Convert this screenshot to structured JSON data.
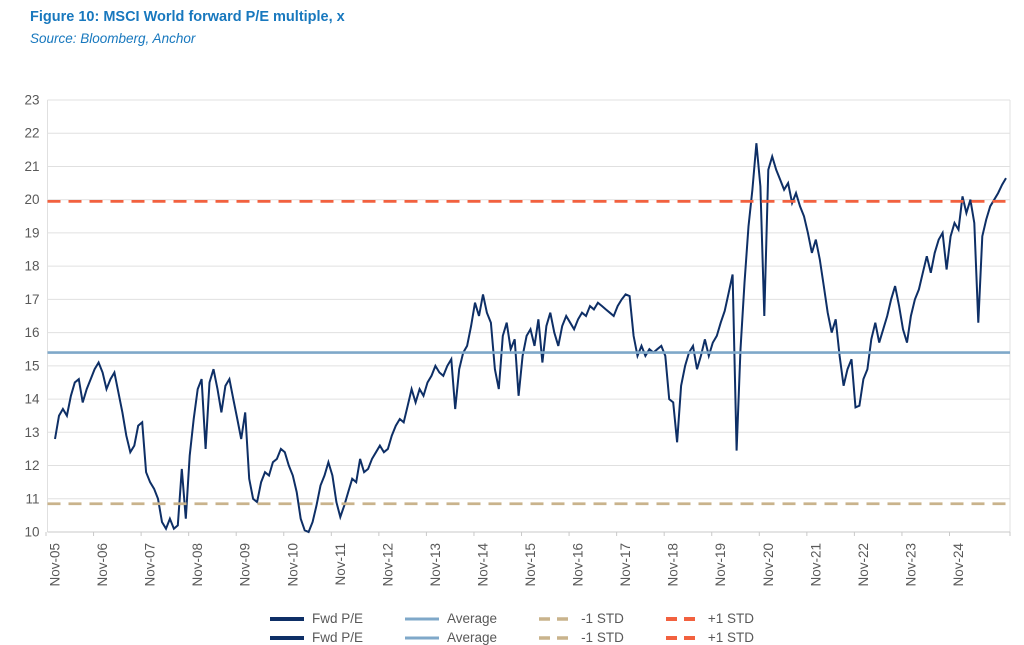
{
  "header": {
    "title": "Figure 10: MSCI World forward P/E multiple, x",
    "source": "Source: Bloomberg, Anchor"
  },
  "colors": {
    "title_blue": "#1878be",
    "fwd_pe_navy": "#0e2f66",
    "average_steel_blue": "#7fa8c9",
    "minus_1_std_tan": "#c9b38c",
    "plus_1_std_orange": "#f2613f",
    "gridline_gray": "#e0e0e0",
    "tick_text_gray": "#595959"
  },
  "chart_data": {
    "type": "line",
    "title": "MSCI World forward P/E multiple, x",
    "xlabel": "",
    "ylabel": "",
    "ylim": [
      10,
      23
    ],
    "yticks": [
      10,
      11,
      12,
      13,
      14,
      15,
      16,
      17,
      18,
      19,
      20,
      21,
      22,
      23
    ],
    "grid": "horizontal",
    "x_tick_labels": [
      "Nov-05",
      "Nov-06",
      "Nov-07",
      "Nov-08",
      "Nov-09",
      "Nov-10",
      "Nov-11",
      "Nov-12",
      "Nov-13",
      "Nov-14",
      "Nov-15",
      "Nov-16",
      "Nov-17",
      "Nov-18",
      "Nov-19",
      "Nov-20",
      "Nov-21",
      "Nov-22",
      "Nov-23",
      "Nov-24"
    ],
    "x_frequency": "monthly, starting Nov-2005",
    "legend": [
      "Fwd P/E",
      "Average",
      "-1 STD",
      "+1 STD"
    ],
    "legend_position": "bottom-center",
    "reference_lines": {
      "average": 15.4,
      "plus_1_std": 19.95,
      "minus_1_std": 10.85
    },
    "series": [
      {
        "name": "Fwd P/E",
        "style": "solid",
        "values": [
          12.8,
          13.5,
          13.7,
          13.5,
          14.1,
          14.5,
          14.6,
          13.9,
          14.3,
          14.6,
          14.9,
          15.1,
          14.8,
          14.3,
          14.6,
          14.8,
          14.2,
          13.6,
          12.9,
          12.4,
          12.6,
          13.2,
          13.3,
          11.8,
          11.5,
          11.3,
          11.0,
          10.3,
          10.1,
          10.4,
          10.1,
          10.2,
          11.9,
          10.4,
          12.3,
          13.4,
          14.3,
          14.6,
          12.5,
          14.5,
          14.9,
          14.3,
          13.6,
          14.4,
          14.6,
          14.0,
          13.4,
          12.8,
          13.6,
          11.6,
          11.0,
          10.9,
          11.5,
          11.8,
          11.7,
          12.1,
          12.2,
          12.5,
          12.4,
          12.0,
          11.7,
          11.2,
          10.4,
          10.05,
          10.0,
          10.3,
          10.8,
          11.4,
          11.7,
          12.1,
          11.7,
          10.9,
          10.45,
          10.8,
          11.2,
          11.6,
          11.5,
          12.2,
          11.8,
          11.9,
          12.2,
          12.4,
          12.6,
          12.4,
          12.5,
          12.9,
          13.2,
          13.4,
          13.3,
          13.8,
          14.3,
          13.9,
          14.3,
          14.1,
          14.5,
          14.7,
          15.0,
          14.8,
          14.7,
          15.0,
          15.2,
          13.7,
          14.9,
          15.4,
          15.6,
          16.2,
          16.9,
          16.5,
          17.15,
          16.6,
          16.3,
          14.9,
          14.3,
          15.9,
          16.3,
          15.5,
          15.8,
          14.1,
          15.3,
          15.9,
          16.1,
          15.6,
          16.4,
          15.1,
          16.2,
          16.6,
          16.0,
          15.6,
          16.2,
          16.5,
          16.3,
          16.1,
          16.4,
          16.6,
          16.5,
          16.8,
          16.7,
          16.9,
          16.8,
          16.7,
          16.6,
          16.5,
          16.8,
          17.0,
          17.15,
          17.1,
          15.9,
          15.3,
          15.6,
          15.3,
          15.5,
          15.4,
          15.5,
          15.6,
          15.3,
          14.0,
          13.9,
          12.7,
          14.4,
          15.0,
          15.4,
          15.6,
          14.9,
          15.3,
          15.8,
          15.3,
          15.7,
          15.9,
          16.3,
          16.65,
          17.2,
          17.75,
          12.45,
          15.5,
          17.5,
          19.2,
          20.3,
          21.7,
          20.4,
          16.5,
          20.9,
          21.3,
          20.9,
          20.6,
          20.3,
          20.5,
          19.9,
          20.2,
          19.8,
          19.5,
          19.0,
          18.4,
          18.8,
          18.2,
          17.4,
          16.6,
          16.0,
          16.4,
          15.3,
          14.4,
          14.9,
          15.2,
          13.75,
          13.8,
          14.6,
          14.9,
          15.8,
          16.3,
          15.7,
          16.1,
          16.5,
          17.0,
          17.4,
          16.8,
          16.1,
          15.7,
          16.5,
          17.0,
          17.3,
          17.8,
          18.3,
          17.8,
          18.4,
          18.8,
          19.0,
          17.9,
          18.9,
          19.3,
          19.1,
          20.1,
          19.6,
          20.0,
          19.3,
          16.3,
          18.9,
          19.4,
          19.8,
          20.0,
          20.2,
          20.45,
          20.65
        ]
      },
      {
        "name": "Average",
        "style": "solid-hline",
        "value": 15.4
      },
      {
        "name": "-1 STD",
        "style": "dashed-hline",
        "value": 10.85
      },
      {
        "name": "+1 STD",
        "style": "dashed-hline",
        "value": 19.95
      }
    ]
  }
}
